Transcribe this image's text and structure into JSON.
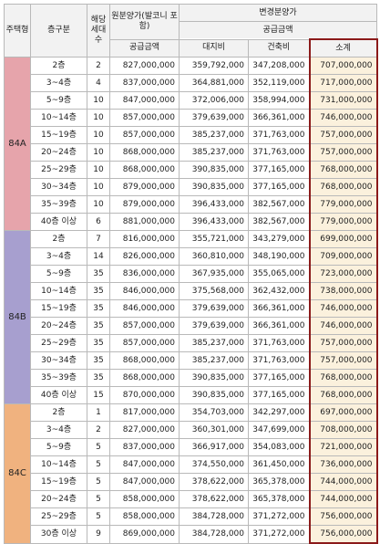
{
  "header": {
    "type_label": "주택형",
    "floor_label": "층구분",
    "units_label": "해당세대수",
    "orig_label": "원분양가(발코니 포함)",
    "orig_sub": "공급금액",
    "changed_label": "변경분양가",
    "changed_sub": "공급금액",
    "land_label": "대지비",
    "building_label": "건축비",
    "subtotal_label": "소계"
  },
  "groups": [
    {
      "type": "84A",
      "color": "#e6a4ab",
      "rows": [
        [
          "2층",
          "2",
          "827,000,000",
          "359,792,000",
          "347,208,000",
          "707,000,000"
        ],
        [
          "3~4층",
          "4",
          "837,000,000",
          "364,881,000",
          "352,119,000",
          "717,000,000"
        ],
        [
          "5~9층",
          "10",
          "847,000,000",
          "372,006,000",
          "358,994,000",
          "731,000,000"
        ],
        [
          "10~14층",
          "10",
          "857,000,000",
          "379,639,000",
          "366,361,000",
          "746,000,000"
        ],
        [
          "15~19층",
          "10",
          "857,000,000",
          "385,237,000",
          "371,763,000",
          "757,000,000"
        ],
        [
          "20~24층",
          "10",
          "868,000,000",
          "385,237,000",
          "371,763,000",
          "757,000,000"
        ],
        [
          "25~29층",
          "10",
          "868,000,000",
          "390,835,000",
          "377,165,000",
          "768,000,000"
        ],
        [
          "30~34층",
          "10",
          "879,000,000",
          "390,835,000",
          "377,165,000",
          "768,000,000"
        ],
        [
          "35~39층",
          "10",
          "879,000,000",
          "396,433,000",
          "382,567,000",
          "779,000,000"
        ],
        [
          "40층 이상",
          "6",
          "881,000,000",
          "396,433,000",
          "382,567,000",
          "779,000,000"
        ]
      ]
    },
    {
      "type": "84B",
      "color": "#a79fcf",
      "rows": [
        [
          "2층",
          "7",
          "816,000,000",
          "355,721,000",
          "343,279,000",
          "699,000,000"
        ],
        [
          "3~4층",
          "14",
          "826,000,000",
          "360,810,000",
          "348,190,000",
          "709,000,000"
        ],
        [
          "5~9층",
          "35",
          "836,000,000",
          "367,935,000",
          "355,065,000",
          "723,000,000"
        ],
        [
          "10~14층",
          "35",
          "846,000,000",
          "375,568,000",
          "362,432,000",
          "738,000,000"
        ],
        [
          "15~19층",
          "35",
          "846,000,000",
          "379,639,000",
          "366,361,000",
          "746,000,000"
        ],
        [
          "20~24층",
          "35",
          "857,000,000",
          "379,639,000",
          "366,361,000",
          "746,000,000"
        ],
        [
          "25~29층",
          "35",
          "857,000,000",
          "385,237,000",
          "371,763,000",
          "757,000,000"
        ],
        [
          "30~34층",
          "35",
          "868,000,000",
          "385,237,000",
          "371,763,000",
          "757,000,000"
        ],
        [
          "35~39층",
          "35",
          "868,000,000",
          "390,835,000",
          "377,165,000",
          "768,000,000"
        ],
        [
          "40층 이상",
          "15",
          "870,000,000",
          "390,835,000",
          "377,165,000",
          "768,000,000"
        ]
      ]
    },
    {
      "type": "84C",
      "color": "#f0b27f",
      "rows": [
        [
          "2층",
          "1",
          "817,000,000",
          "354,703,000",
          "342,297,000",
          "697,000,000"
        ],
        [
          "3~4층",
          "2",
          "827,000,000",
          "360,301,000",
          "347,699,000",
          "708,000,000"
        ],
        [
          "5~9층",
          "5",
          "837,000,000",
          "366,917,000",
          "354,083,000",
          "721,000,000"
        ],
        [
          "10~14층",
          "5",
          "847,000,000",
          "374,550,000",
          "361,450,000",
          "736,000,000"
        ],
        [
          "15~19층",
          "5",
          "847,000,000",
          "378,622,000",
          "365,378,000",
          "744,000,000"
        ],
        [
          "20~24층",
          "5",
          "858,000,000",
          "378,622,000",
          "365,378,000",
          "744,000,000"
        ],
        [
          "25~29층",
          "5",
          "858,000,000",
          "384,728,000",
          "371,272,000",
          "756,000,000"
        ],
        [
          "30층 이상",
          "9",
          "869,000,000",
          "384,728,000",
          "371,272,000",
          "756,000,000"
        ]
      ]
    }
  ]
}
